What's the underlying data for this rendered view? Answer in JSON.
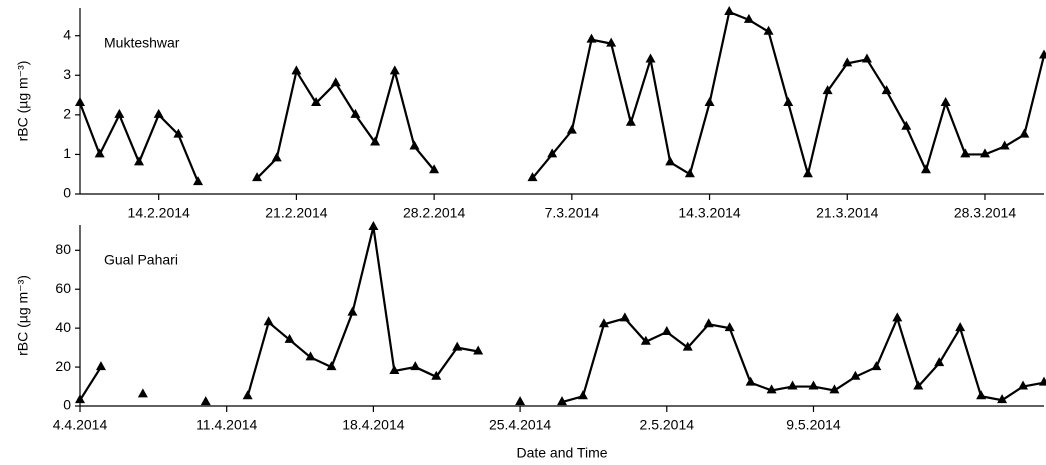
{
  "chart_data": [
    {
      "type": "line",
      "annotation": "Mukteshwar",
      "y_label": "rBC (µg m⁻³)",
      "color": "#000000",
      "marker": "triangle",
      "x": [
        "10.2.2014",
        "11.2.2014",
        "12.2.2014",
        "13.2.2014",
        "14.2.2014",
        "15.2.2014",
        "16.2.2014",
        "17.2.2014",
        "18.2.2014",
        "19.2.2014",
        "20.2.2014",
        "21.2.2014",
        "22.2.2014",
        "23.2.2014",
        "24.2.2014",
        "25.2.2014",
        "26.2.2014",
        "27.2.2014",
        "28.2.2014",
        "1.3.2014",
        "2.3.2014",
        "3.3.2014",
        "4.3.2014",
        "5.3.2014",
        "6.3.2014",
        "7.3.2014",
        "8.3.2014",
        "9.3.2014",
        "10.3.2014",
        "11.3.2014",
        "12.3.2014",
        "13.3.2014",
        "14.3.2014",
        "15.3.2014",
        "16.3.2014",
        "17.3.2014",
        "18.3.2014",
        "19.3.2014",
        "20.3.2014",
        "21.3.2014",
        "22.3.2014",
        "23.3.2014",
        "24.3.2014",
        "25.3.2014",
        "26.3.2014",
        "27.3.2014",
        "28.3.2014",
        "29.3.2014",
        "30.3.2014",
        "31.3.2014"
      ],
      "values": [
        2.3,
        1.0,
        2.0,
        0.8,
        2.0,
        1.5,
        0.3,
        null,
        null,
        0.4,
        0.9,
        3.1,
        2.3,
        2.8,
        2.0,
        1.3,
        3.1,
        1.2,
        0.6,
        null,
        null,
        null,
        null,
        0.4,
        1.0,
        1.6,
        3.9,
        3.8,
        1.8,
        3.4,
        0.8,
        0.5,
        2.3,
        4.6,
        4.4,
        4.1,
        2.3,
        0.5,
        2.6,
        3.3,
        3.4,
        2.6,
        1.7,
        0.6,
        2.3,
        1.0,
        1.0,
        1.2,
        1.5,
        3.5
      ],
      "xlim": [
        "10.2.2014",
        "31.3.2014"
      ],
      "xticks": [
        "14.2.2014",
        "21.2.2014",
        "28.2.2014",
        "7.3.2014",
        "14.3.2014",
        "21.3.2014",
        "28.3.2014"
      ],
      "ylim": [
        0,
        4.7
      ],
      "yticks": [
        0,
        1,
        2,
        3,
        4
      ]
    },
    {
      "type": "line",
      "annotation": "Gual Pahari",
      "y_label": "rBC (µg m⁻³)",
      "x_label": "Date and Time",
      "color": "#000000",
      "marker": "triangle",
      "x": [
        "4.4.2014",
        "5.4.2014",
        "6.4.2014",
        "7.4.2014",
        "8.4.2014",
        "9.4.2014",
        "10.4.2014",
        "11.4.2014",
        "12.4.2014",
        "13.4.2014",
        "14.4.2014",
        "15.4.2014",
        "16.4.2014",
        "17.4.2014",
        "18.4.2014",
        "19.4.2014",
        "20.4.2014",
        "21.4.2014",
        "22.4.2014",
        "23.4.2014",
        "24.4.2014",
        "25.4.2014",
        "26.4.2014",
        "27.4.2014",
        "28.4.2014",
        "29.4.2014",
        "30.4.2014",
        "1.5.2014",
        "2.5.2014",
        "3.5.2014",
        "4.5.2014",
        "5.5.2014",
        "6.5.2014",
        "7.5.2014",
        "8.5.2014",
        "9.5.2014",
        "10.5.2014",
        "11.5.2014",
        "12.5.2014",
        "13.5.2014",
        "14.5.2014",
        "15.5.2014",
        "16.5.2014",
        "17.5.2014",
        "18.5.2014",
        "19.5.2014",
        "20.5.2014"
      ],
      "values": [
        3,
        20,
        null,
        6,
        null,
        null,
        2,
        null,
        5,
        43,
        34,
        25,
        20,
        48,
        92,
        18,
        20,
        15,
        30,
        28,
        null,
        2,
        null,
        2,
        5,
        42,
        45,
        33,
        38,
        30,
        42,
        40,
        12,
        8,
        10,
        10,
        8,
        15,
        20,
        45,
        10,
        22,
        40,
        5,
        3,
        10,
        12
      ],
      "xlim": [
        "4.4.2014",
        "20.5.2014"
      ],
      "xticks": [
        "4.4.2014",
        "11.4.2014",
        "18.4.2014",
        "25.4.2014",
        "2.5.2014",
        "9.5.2014"
      ],
      "ylim": [
        0,
        93
      ],
      "yticks": [
        0,
        20,
        40,
        60,
        80
      ]
    }
  ]
}
